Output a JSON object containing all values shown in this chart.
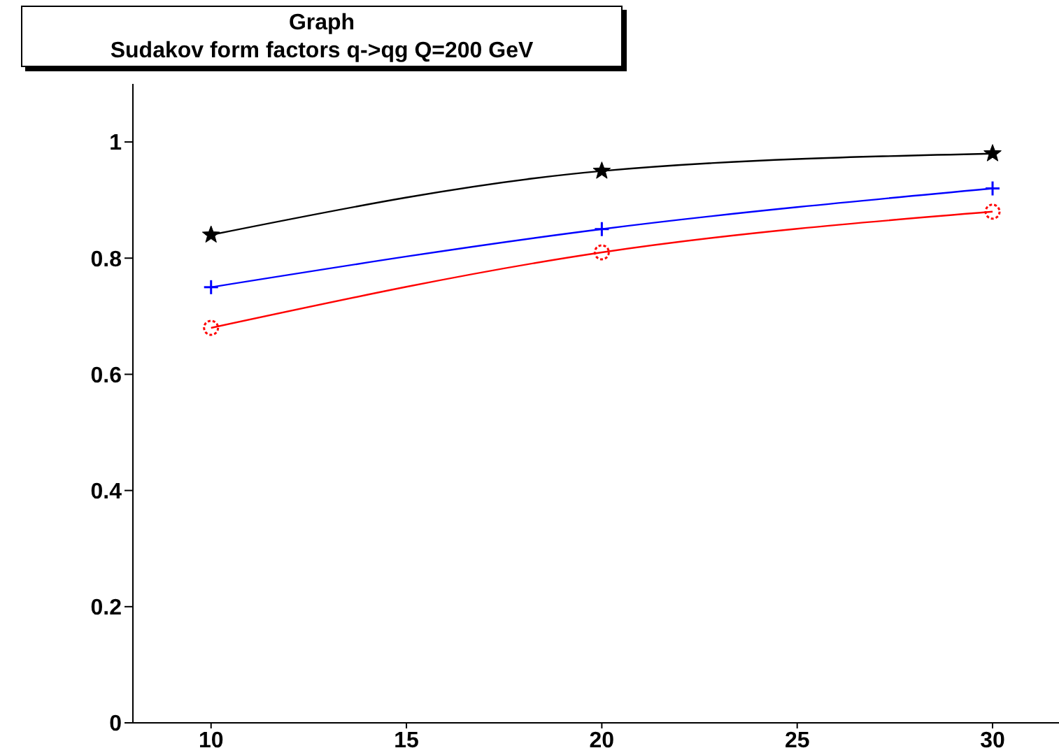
{
  "chart_data": {
    "type": "line",
    "title": "Graph",
    "subtitle": "Sudakov form factors q->qg Q=200 GeV",
    "x": [
      10,
      20,
      30
    ],
    "series": [
      {
        "color": "#000000",
        "values": [
          0.84,
          0.95,
          0.98
        ],
        "marker": "star"
      },
      {
        "color": "#0000ff",
        "values": [
          0.75,
          0.85,
          0.92
        ],
        "marker": "cross"
      },
      {
        "color": "#ff0000",
        "values": [
          0.68,
          0.81,
          0.88
        ],
        "marker": "circle"
      }
    ],
    "xlim": [
      8,
      31.7
    ],
    "xticks": [
      10,
      15,
      20,
      25,
      30
    ],
    "ylim": [
      0,
      1.1
    ],
    "yticks": [
      0,
      {
        "value": 0.2,
        "label": "0.2"
      },
      {
        "value": 0.4,
        "label": "0.4"
      },
      {
        "value": 0.6,
        "label": "0.6"
      },
      {
        "value": 0.8,
        "label": "0.8"
      },
      1
    ],
    "grid": false,
    "legend": false
  }
}
